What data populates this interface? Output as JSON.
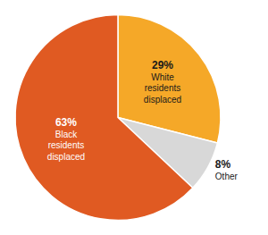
{
  "chart_data": {
    "type": "pie",
    "categories": [
      "White\nresidents\ndisplaced",
      "Other",
      "Black\nresidents\ndisplaced"
    ],
    "values": [
      29,
      8,
      63
    ],
    "value_labels": [
      "29%",
      "8%",
      "63%"
    ],
    "colors": [
      "#F5A828",
      "#D8D8D8",
      "#E05A22"
    ],
    "data_labels": true
  }
}
